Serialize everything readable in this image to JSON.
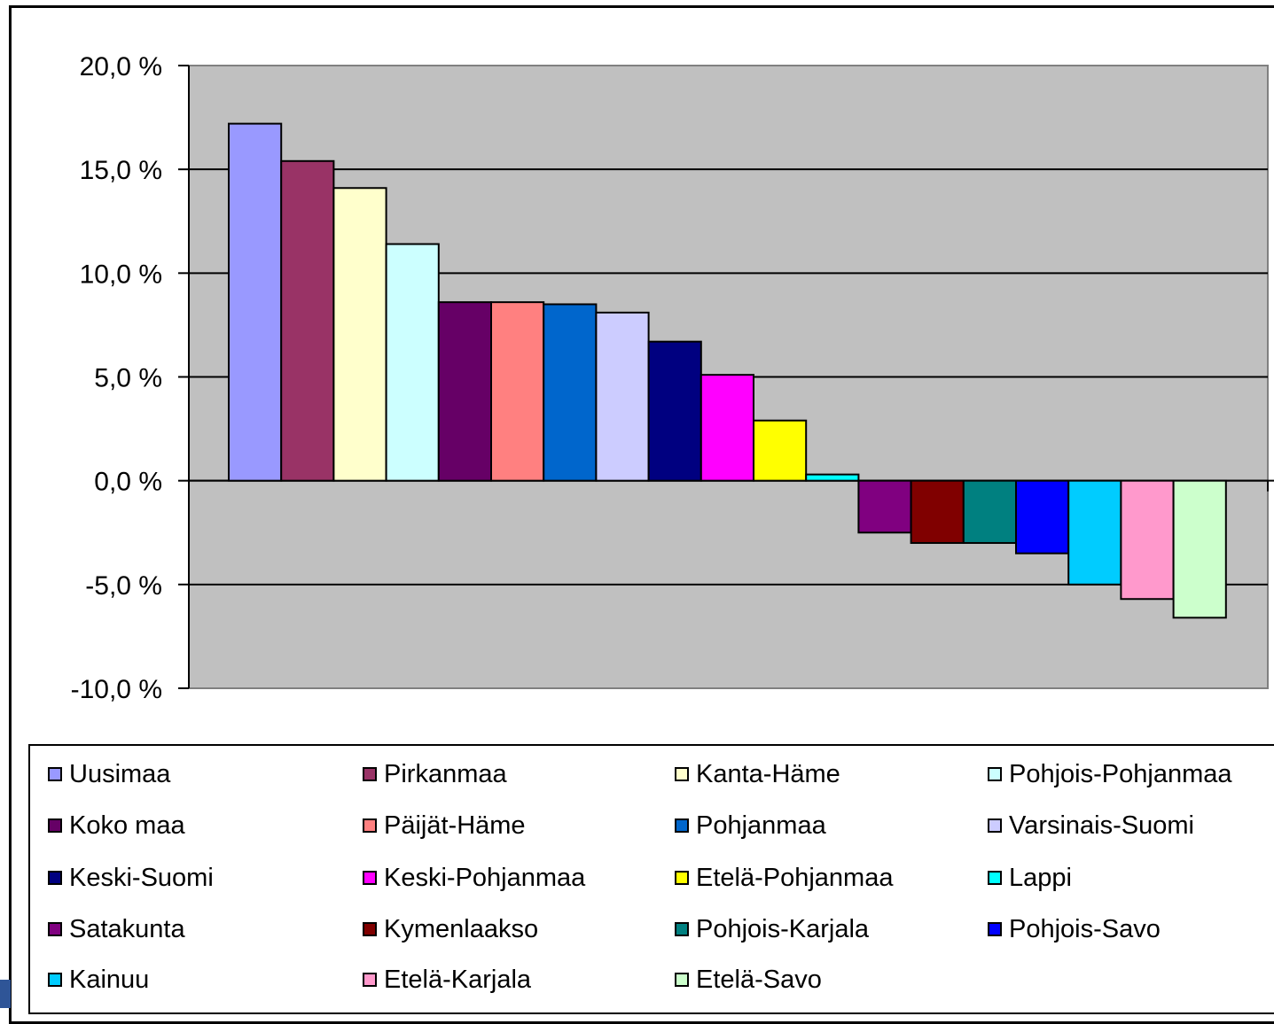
{
  "chart_data": {
    "type": "bar",
    "categories": [
      "Uusimaa",
      "Pirkanmaa",
      "Kanta-Häme",
      "Pohjois-Pohjanmaa",
      "Koko maa",
      "Päijät-Häme",
      "Pohjanmaa",
      "Varsinais-Suomi",
      "Keski-Suomi",
      "Keski-Pohjanmaa",
      "Etelä-Pohjanmaa",
      "Lappi",
      "Satakunta",
      "Kymenlaakso",
      "Pohjois-Karjala",
      "Pohjois-Savo",
      "Kainuu",
      "Etelä-Karjala",
      "Etelä-Savo"
    ],
    "values": [
      17.2,
      15.4,
      14.1,
      11.4,
      8.6,
      8.6,
      8.5,
      8.1,
      6.7,
      5.1,
      2.9,
      0.3,
      -2.5,
      -3.0,
      -3.0,
      -3.5,
      -5.0,
      -5.7,
      -6.6
    ],
    "colors": [
      "#9999ff",
      "#993366",
      "#ffffcc",
      "#ccffff",
      "#660066",
      "#ff8080",
      "#0066cc",
      "#ccccff",
      "#000080",
      "#ff00ff",
      "#ffff00",
      "#00ffff",
      "#800080",
      "#800000",
      "#008080",
      "#0000ff",
      "#00ccff",
      "#ff99cc",
      "#ccffcc"
    ],
    "yticks": [
      "20,0 %",
      "15,0 %",
      "10,0 %",
      "5,0 %",
      "0,0 %",
      "-5,0 %",
      "-10,0 %"
    ],
    "ylim": [
      -10,
      20
    ],
    "grid": true,
    "plot_background": "#c0c0c0",
    "legend_position": "bottom"
  }
}
